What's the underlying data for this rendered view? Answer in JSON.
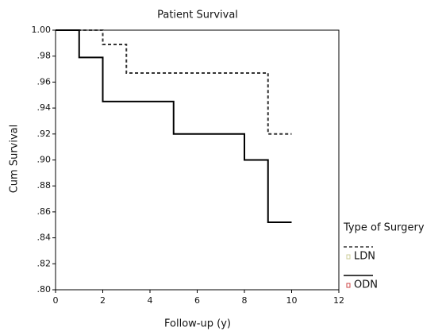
{
  "chart_data": {
    "type": "line",
    "step": "post",
    "title": "Patient Survival",
    "x_label": "Follow-up (y)",
    "y_label": "Cum Survival",
    "legend_title": "Type of Surgery",
    "legend": "right",
    "series": [
      {
        "name": "LDN",
        "color": "#333333",
        "dash": "dashed",
        "x": [
          0,
          2,
          3,
          9,
          10
        ],
        "values": [
          1.0,
          0.989,
          0.967,
          0.92,
          0.92
        ]
      },
      {
        "name": "ODN",
        "color": "#000000",
        "dash": "solid",
        "x": [
          0,
          1,
          2,
          5,
          8,
          9,
          10
        ],
        "values": [
          1.0,
          0.979,
          0.945,
          0.92,
          0.9,
          0.852,
          0.852
        ]
      }
    ],
    "xlim": [
      0,
      12
    ],
    "xticks": [
      0,
      2,
      4,
      6,
      8,
      10,
      12
    ],
    "ylim": [
      0.8,
      1.0
    ],
    "yticks": [
      {
        "value": 0.8,
        "label": ".80"
      },
      {
        "value": 0.82,
        "label": ".82"
      },
      {
        "value": 0.84,
        "label": ".84"
      },
      {
        "value": 0.86,
        "label": ".86"
      },
      {
        "value": 0.88,
        "label": ".88"
      },
      {
        "value": 0.9,
        "label": ".90"
      },
      {
        "value": 0.92,
        "label": ".92"
      },
      {
        "value": 0.94,
        "label": ".94"
      },
      {
        "value": 0.96,
        "label": ".96"
      },
      {
        "value": 0.98,
        "label": ".98"
      },
      {
        "value": 1.0,
        "label": "1.00"
      }
    ]
  }
}
